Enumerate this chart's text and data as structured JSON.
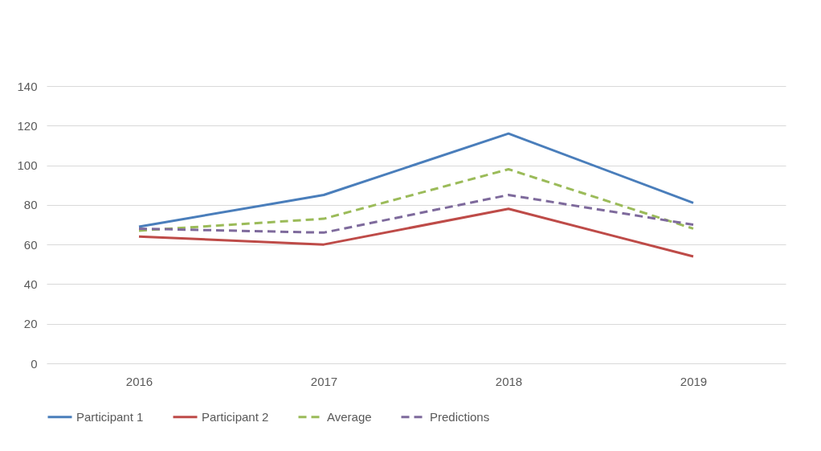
{
  "chart_data": {
    "type": "line",
    "categories": [
      "2016",
      "2017",
      "2018",
      "2019"
    ],
    "series": [
      {
        "name": "Participant 1",
        "color": "#4a7ebb",
        "line_style": "solid",
        "values": [
          69,
          85,
          116,
          81
        ]
      },
      {
        "name": "Participant 2",
        "color": "#be4b48",
        "line_style": "solid",
        "values": [
          64,
          60,
          78,
          54
        ]
      },
      {
        "name": "Average",
        "color": "#9bbb59",
        "line_style": "dashed",
        "values": [
          67,
          73,
          98,
          68
        ]
      },
      {
        "name": "Predictions",
        "color": "#7e6a9c",
        "line_style": "dashed",
        "values": [
          68,
          66,
          85,
          70
        ]
      }
    ],
    "ylim": [
      0,
      140
    ],
    "yticks": [
      0,
      20,
      40,
      60,
      80,
      100,
      120,
      140
    ],
    "grid": "y",
    "legend": "bottom",
    "marker": "none"
  }
}
